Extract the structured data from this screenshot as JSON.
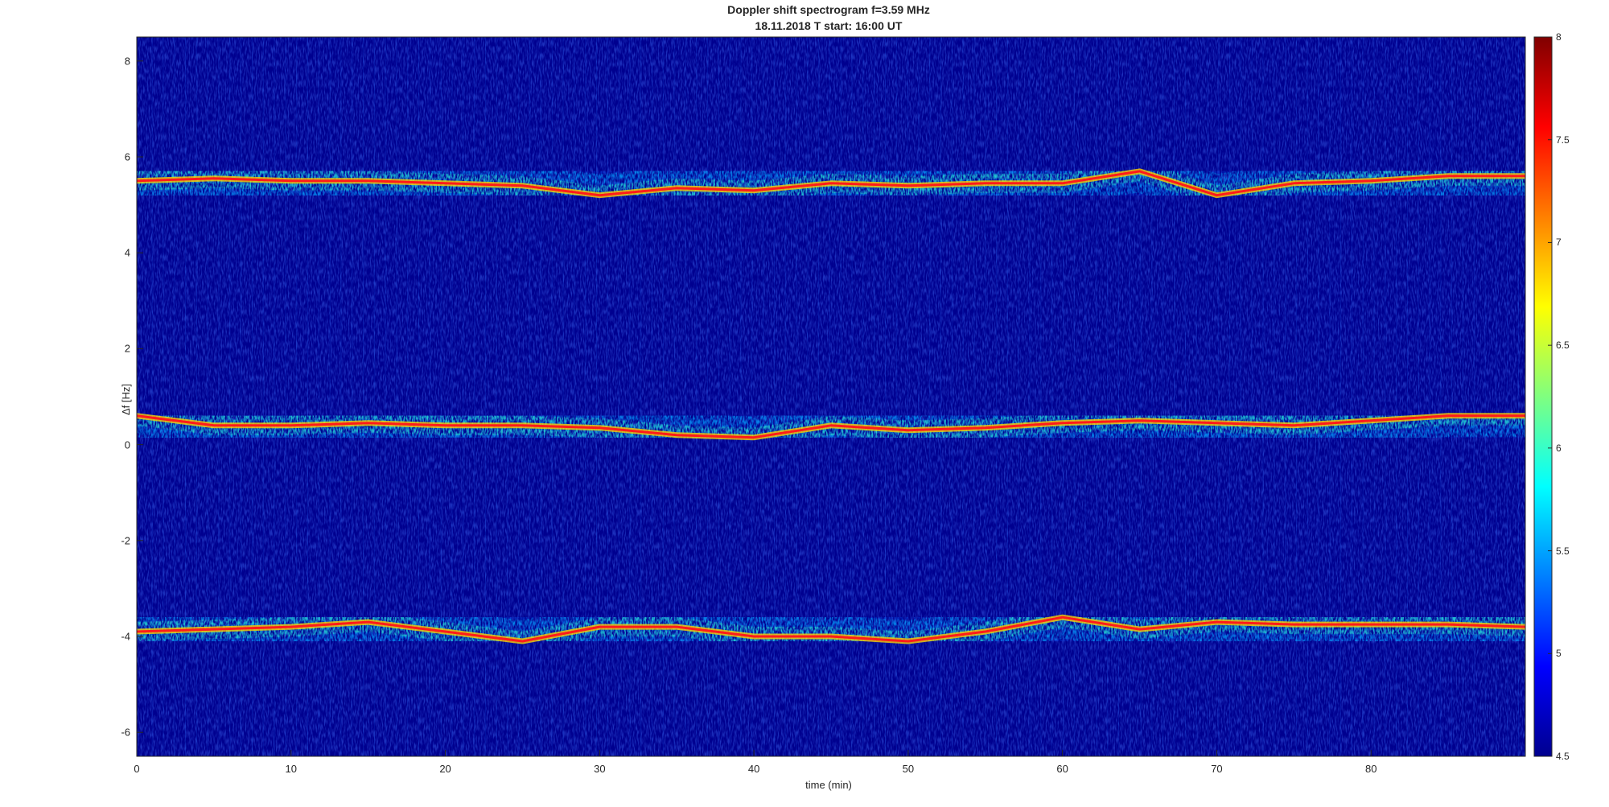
{
  "chart_data": {
    "type": "heatmap",
    "title": "Doppler shift spectrogram f=3.59 MHz",
    "subtitle": "18.11.2018   T start: 16:00 UT",
    "xlabel": "time (min)",
    "ylabel": "Δf [Hz]",
    "xlim": [
      0,
      90
    ],
    "ylim": [
      -6.5,
      8.5
    ],
    "xticks": [
      0,
      10,
      20,
      30,
      40,
      50,
      60,
      70,
      80
    ],
    "yticks": [
      -6,
      -4,
      -2,
      0,
      2,
      4,
      6,
      8
    ],
    "colorbar": {
      "colormap": "jet",
      "range": [
        4.5,
        8
      ],
      "ticks": [
        4.5,
        5,
        5.5,
        6,
        6.5,
        7,
        7.5,
        8
      ],
      "tick_labels": [
        "4.5",
        "5",
        "5.5",
        "6",
        "6.5",
        "7",
        "7.5",
        "8"
      ]
    },
    "series": [
      {
        "x": [
          0,
          5,
          10,
          15,
          20,
          25,
          30,
          35,
          40,
          45,
          50,
          55,
          60,
          65,
          70,
          75,
          80,
          85,
          90
        ],
        "y": [
          5.5,
          5.55,
          5.5,
          5.5,
          5.45,
          5.4,
          5.2,
          5.35,
          5.3,
          5.45,
          5.4,
          5.45,
          5.45,
          5.7,
          5.2,
          5.45,
          5.5,
          5.6,
          5.6
        ]
      },
      {
        "x": [
          0,
          5,
          10,
          15,
          20,
          25,
          30,
          35,
          40,
          45,
          50,
          55,
          60,
          65,
          70,
          75,
          80,
          85,
          90
        ],
        "y": [
          0.6,
          0.4,
          0.4,
          0.45,
          0.4,
          0.4,
          0.35,
          0.2,
          0.15,
          0.4,
          0.3,
          0.35,
          0.45,
          0.5,
          0.45,
          0.4,
          0.5,
          0.6,
          0.6
        ]
      },
      {
        "x": [
          0,
          5,
          10,
          15,
          20,
          25,
          30,
          35,
          40,
          45,
          50,
          55,
          60,
          65,
          70,
          75,
          80,
          85,
          90
        ],
        "y": [
          -3.9,
          -3.85,
          -3.8,
          -3.7,
          -3.9,
          -4.1,
          -3.8,
          -3.8,
          -4.0,
          -4.0,
          -4.1,
          -3.9,
          -3.6,
          -3.85,
          -3.7,
          -3.75,
          -3.75,
          -3.75,
          -3.8
        ]
      }
    ]
  }
}
